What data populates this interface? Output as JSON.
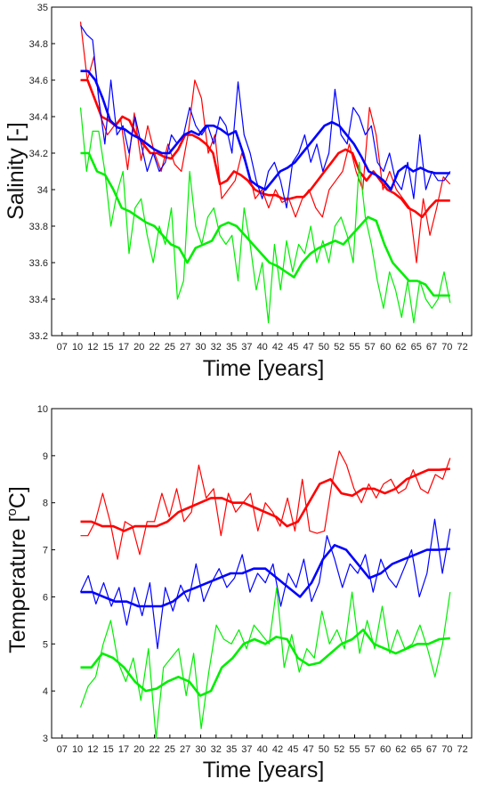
{
  "chart_data": [
    {
      "type": "line",
      "xlabel": "Time [years]",
      "ylabel": "Salinity [-]",
      "xlim": [
        5.3,
        73.5
      ],
      "ylim": [
        33.2,
        35
      ],
      "x_ticks": [
        "07",
        "10",
        "12",
        "15",
        "17",
        "20",
        "22",
        "25",
        "27",
        "30",
        "32",
        "35",
        "37",
        "40",
        "42",
        "45",
        "47",
        "50",
        "52",
        "55",
        "57",
        "60",
        "62",
        "65",
        "67",
        "70",
        "72"
      ],
      "y_ticks": [
        "33.2",
        "33.4",
        "33.6",
        "33.8",
        "34",
        "34.2",
        "34.4",
        "34.6",
        "34.8",
        "35"
      ],
      "series": [
        {
          "color": "#ff0000",
          "style": "raw",
          "values": [
            34.92,
            34.6,
            34.73,
            34.4,
            34.3,
            34.35,
            34.38,
            34.11,
            34.42,
            34.16,
            34.35,
            34.2,
            34.1,
            34.25,
            34.14,
            34.1,
            34.3,
            34.6,
            34.5,
            34.2,
            34.3,
            33.95,
            34.0,
            34.05,
            34.2,
            34.1,
            33.95,
            34.0,
            33.9,
            34.0,
            33.93,
            33.95,
            33.85,
            33.95,
            34.0,
            33.9,
            33.85,
            34.0,
            34.05,
            34.1,
            34.25,
            34.1,
            34.0,
            34.45,
            34.3,
            34.0,
            34.1,
            34.0,
            33.95,
            33.9,
            33.6,
            33.95,
            33.75,
            33.9,
            34.07,
            34.03
          ]
        },
        {
          "color": "#ff0000",
          "style": "smooth",
          "values": [
            34.6,
            34.6,
            34.5,
            34.4,
            34.38,
            34.35,
            34.4,
            34.38,
            34.3,
            34.25,
            34.2,
            34.2,
            34.18,
            34.17,
            34.22,
            34.3,
            34.3,
            34.28,
            34.25,
            34.2,
            34.03,
            34.05,
            34.1,
            34.08,
            34.05,
            34.0,
            33.98,
            33.97,
            33.97,
            33.95,
            33.95,
            33.96,
            33.96,
            34.0,
            34.05,
            34.1,
            34.15,
            34.2,
            34.22,
            34.2,
            34.1,
            34.05,
            34.1,
            34.05,
            34.0,
            33.98,
            33.95,
            33.9,
            33.88,
            33.85,
            33.9,
            33.94,
            33.94,
            33.94
          ]
        },
        {
          "color": "#0000ff",
          "style": "raw",
          "values": [
            34.9,
            34.85,
            34.82,
            34.5,
            34.25,
            34.6,
            34.3,
            34.35,
            34.2,
            34.4,
            34.25,
            34.1,
            34.2,
            34.1,
            34.15,
            34.3,
            34.25,
            34.3,
            34.45,
            34.35,
            34.3,
            34.35,
            34.25,
            34.4,
            34.35,
            34.2,
            34.59,
            34.3,
            34.2,
            34.05,
            33.95,
            34.1,
            34.15,
            34.05,
            33.9,
            34.15,
            34.2,
            34.3,
            34.15,
            34.25,
            34.1,
            34.2,
            34.55,
            34.3,
            34.25,
            34.45,
            34.4,
            34.3,
            34.35,
            34.15,
            34.1,
            34.2,
            34.05,
            34.0,
            34.15,
            33.95,
            34.3,
            34.0,
            34.1,
            34.05,
            34.05,
            34.1
          ]
        },
        {
          "color": "#0000ff",
          "style": "smooth",
          "values": [
            34.65,
            34.65,
            34.6,
            34.5,
            34.38,
            34.34,
            34.33,
            34.3,
            34.28,
            34.25,
            34.22,
            34.2,
            34.2,
            34.25,
            34.3,
            34.32,
            34.3,
            34.35,
            34.35,
            34.33,
            34.3,
            34.32,
            34.2,
            34.05,
            34.02,
            34.0,
            34.05,
            34.1,
            34.12,
            34.15,
            34.2,
            34.25,
            34.3,
            34.35,
            34.37,
            34.35,
            34.3,
            34.25,
            34.18,
            34.1,
            34.08,
            34.05,
            34.0,
            34.1,
            34.13,
            34.1,
            34.12,
            34.1,
            34.09,
            34.09,
            34.09
          ]
        },
        {
          "color": "#00ee00",
          "style": "raw",
          "values": [
            34.45,
            34.1,
            34.32,
            34.32,
            34.1,
            33.8,
            33.98,
            34.1,
            33.65,
            33.9,
            33.95,
            33.75,
            33.6,
            33.8,
            33.7,
            33.9,
            33.4,
            33.5,
            34.1,
            33.8,
            33.7,
            33.85,
            33.9,
            33.75,
            33.7,
            33.75,
            33.5,
            33.9,
            33.7,
            33.45,
            33.6,
            33.27,
            33.7,
            33.45,
            33.72,
            33.55,
            33.7,
            33.65,
            33.8,
            33.6,
            33.72,
            33.6,
            33.8,
            33.85,
            33.75,
            33.6,
            34.15,
            33.85,
            33.7,
            33.5,
            33.35,
            33.55,
            33.45,
            33.3,
            33.5,
            33.27,
            33.5,
            33.4,
            33.35,
            33.4,
            33.55,
            33.38
          ]
        },
        {
          "color": "#00ee00",
          "style": "smooth",
          "values": [
            34.2,
            34.2,
            34.1,
            34.08,
            34.0,
            33.9,
            33.88,
            33.85,
            33.82,
            33.8,
            33.75,
            33.7,
            33.68,
            33.6,
            33.68,
            33.7,
            33.72,
            33.8,
            33.82,
            33.8,
            33.75,
            33.7,
            33.65,
            33.6,
            33.58,
            33.55,
            33.52,
            33.6,
            33.65,
            33.68,
            33.7,
            33.72,
            33.7,
            33.75,
            33.8,
            33.85,
            33.83,
            33.7,
            33.6,
            33.55,
            33.5,
            33.5,
            33.48,
            33.42,
            33.42,
            33.42
          ]
        }
      ]
    },
    {
      "type": "line",
      "xlabel": "Time [years]",
      "ylabel": "Temperature [°C]",
      "ylabel_parts": [
        "Temperature [",
        "o",
        "C]"
      ],
      "xlim": [
        5.3,
        73.5
      ],
      "ylim": [
        3,
        10
      ],
      "x_ticks": [
        "07",
        "10",
        "12",
        "15",
        "17",
        "20",
        "22",
        "25",
        "27",
        "30",
        "32",
        "35",
        "37",
        "40",
        "42",
        "45",
        "47",
        "50",
        "52",
        "55",
        "57",
        "60",
        "62",
        "65",
        "67",
        "70",
        "72"
      ],
      "y_ticks": [
        "3",
        "4",
        "5",
        "6",
        "7",
        "8",
        "9",
        "10"
      ],
      "series": [
        {
          "color": "#ff0000",
          "style": "raw",
          "values": [
            7.3,
            7.3,
            7.6,
            8.2,
            7.6,
            6.8,
            7.6,
            7.5,
            6.9,
            7.6,
            7.6,
            8.2,
            7.7,
            8.3,
            7.6,
            7.8,
            8.8,
            8.1,
            8.3,
            7.3,
            8.2,
            7.8,
            8.0,
            8.2,
            7.4,
            8.0,
            7.8,
            7.5,
            8.1,
            7.4,
            8.5,
            7.4,
            7.35,
            7.4,
            8.4,
            9.1,
            8.8,
            8.3,
            8.0,
            8.4,
            8.1,
            8.4,
            8.5,
            8.2,
            8.3,
            8.7,
            8.3,
            8.2,
            8.6,
            8.5,
            8.95
          ]
        },
        {
          "color": "#ff0000",
          "style": "smooth",
          "values": [
            7.6,
            7.6,
            7.5,
            7.5,
            7.4,
            7.5,
            7.5,
            7.5,
            7.6,
            7.8,
            7.9,
            8.0,
            8.1,
            8.1,
            8.0,
            8.0,
            7.9,
            7.8,
            7.7,
            7.5,
            7.6,
            8.0,
            8.4,
            8.5,
            8.2,
            8.15,
            8.3,
            8.3,
            8.2,
            8.3,
            8.5,
            8.6,
            8.7,
            8.7,
            8.72
          ]
        },
        {
          "color": "#0000ff",
          "style": "raw",
          "values": [
            6.1,
            6.45,
            5.85,
            6.3,
            5.8,
            6.2,
            5.4,
            6.2,
            5.6,
            6.3,
            4.9,
            6.2,
            5.7,
            6.25,
            5.9,
            6.7,
            5.9,
            6.3,
            6.6,
            6.2,
            6.4,
            6.9,
            6.1,
            6.5,
            6.3,
            6.7,
            5.8,
            6.5,
            6.2,
            6.8,
            5.9,
            6.3,
            7.3,
            6.8,
            6.2,
            6.7,
            6.5,
            6.9,
            6.1,
            6.8,
            6.4,
            6.2,
            6.6,
            7.0,
            6.0,
            6.5,
            7.65,
            6.5,
            7.45
          ]
        },
        {
          "color": "#0000ff",
          "style": "smooth",
          "values": [
            6.1,
            6.1,
            6.0,
            5.9,
            5.9,
            5.8,
            5.8,
            5.8,
            5.9,
            6.1,
            6.2,
            6.3,
            6.4,
            6.5,
            6.5,
            6.6,
            6.6,
            6.4,
            6.2,
            6.0,
            6.3,
            6.8,
            7.1,
            7.0,
            6.7,
            6.4,
            6.5,
            6.7,
            6.8,
            6.9,
            7.0,
            7.0,
            7.02
          ]
        },
        {
          "color": "#00ee00",
          "style": "raw",
          "values": [
            3.65,
            4.1,
            4.3,
            5.0,
            5.5,
            4.6,
            4.2,
            4.7,
            3.8,
            4.9,
            3.0,
            4.5,
            4.7,
            4.9,
            3.9,
            4.8,
            3.2,
            4.4,
            5.4,
            5.1,
            5.0,
            5.3,
            4.9,
            5.4,
            5.2,
            5.0,
            6.2,
            4.5,
            5.2,
            4.4,
            4.9,
            4.7,
            5.7,
            5.0,
            5.3,
            4.9,
            6.1,
            4.8,
            5.5,
            4.9,
            5.8,
            4.8,
            5.3,
            4.9,
            5.0,
            5.4,
            4.9,
            4.3,
            5.0,
            6.1
          ]
        },
        {
          "color": "#00ee00",
          "style": "smooth",
          "values": [
            4.5,
            4.5,
            4.8,
            4.7,
            4.5,
            4.2,
            4.0,
            4.05,
            4.2,
            4.3,
            4.2,
            3.9,
            4.0,
            4.5,
            4.7,
            5.0,
            5.1,
            5.0,
            5.15,
            5.1,
            4.7,
            4.55,
            4.6,
            4.8,
            5.0,
            5.1,
            5.3,
            5.0,
            4.9,
            4.8,
            4.9,
            5.0,
            5.0,
            5.1,
            5.12
          ]
        }
      ]
    }
  ]
}
